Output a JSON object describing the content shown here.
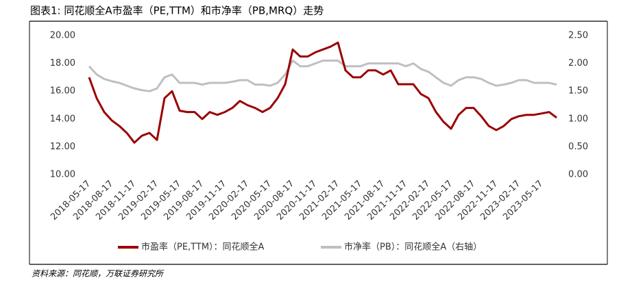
{
  "chart_data": {
    "type": "line",
    "title": "图表1: 同花顺全A市盈率（PE,TTM）和市净率（PB,MRQ）走势",
    "source": "资料来源：同花顺，万联证券研究所",
    "categories": [
      "2018-05-17",
      null,
      null,
      "2018-08-17",
      null,
      null,
      "2018-11-17",
      null,
      null,
      "2019-02-17",
      null,
      null,
      "2019-05-17",
      null,
      null,
      "2019-08-17",
      null,
      null,
      "2019-11-17",
      null,
      null,
      "2020-02-17",
      null,
      null,
      "2020-05-17",
      null,
      null,
      "2020-08-17",
      null,
      null,
      "2020-11-17",
      null,
      null,
      "2021-02-17",
      null,
      null,
      "2021-05-17",
      null,
      null,
      "2021-08-17",
      null,
      null,
      "2021-11-17",
      null,
      null,
      "2022-02-17",
      null,
      null,
      "2022-05-17",
      null,
      null,
      "2022-08-17",
      null,
      null,
      "2022-11-17",
      null,
      null,
      "2023-02-17",
      null,
      null,
      "2023-05-17",
      null,
      null
    ],
    "series": [
      {
        "name": "市盈率（PE,TTM）：同花顺全A",
        "color": "#9b0000",
        "values": [
          17.0,
          15.5,
          14.5,
          13.9,
          13.5,
          13.0,
          12.3,
          12.8,
          13.0,
          12.5,
          15.5,
          16.0,
          14.6,
          14.5,
          14.5,
          14.0,
          14.5,
          14.3,
          14.5,
          14.8,
          15.3,
          15.0,
          14.8,
          14.5,
          14.8,
          15.5,
          16.5,
          19.0,
          18.5,
          18.5,
          18.8,
          19.0,
          19.2,
          19.5,
          17.5,
          17.0,
          17.0,
          17.5,
          17.5,
          17.2,
          17.5,
          16.5,
          16.5,
          16.5,
          15.8,
          15.5,
          14.5,
          13.8,
          13.3,
          14.3,
          14.8,
          14.8,
          14.2,
          13.5,
          13.2,
          13.5,
          14.0,
          14.2,
          14.3,
          14.3,
          14.4,
          14.5,
          14.1
        ]
      },
      {
        "name": "市净率（PB）：同花顺全A（右轴）",
        "color": "#bfbfbf",
        "axis": "y2",
        "values": [
          1.95,
          1.8,
          1.72,
          1.68,
          1.65,
          1.6,
          1.55,
          1.52,
          1.5,
          1.55,
          1.75,
          1.8,
          1.65,
          1.65,
          1.65,
          1.62,
          1.65,
          1.65,
          1.65,
          1.67,
          1.7,
          1.7,
          1.62,
          1.62,
          1.6,
          1.65,
          1.8,
          2.05,
          1.95,
          1.95,
          2.0,
          2.05,
          2.05,
          2.05,
          1.95,
          1.95,
          1.95,
          2.0,
          2.0,
          2.0,
          2.0,
          2.0,
          1.95,
          2.0,
          1.9,
          1.85,
          1.75,
          1.65,
          1.6,
          1.7,
          1.75,
          1.75,
          1.72,
          1.65,
          1.6,
          1.62,
          1.65,
          1.7,
          1.7,
          1.65,
          1.65,
          1.65,
          1.62
        ]
      }
    ],
    "ylim": [
      10,
      20
    ],
    "yticks": [
      {
        "value": 10,
        "label": "10.00"
      },
      {
        "value": 12,
        "label": "12.00"
      },
      {
        "value": 14,
        "label": "14.00"
      },
      {
        "value": 16,
        "label": "16.00"
      },
      {
        "value": 18,
        "label": "18.00"
      },
      {
        "value": 20,
        "label": "20.00"
      }
    ],
    "y2lim": [
      0,
      2.5
    ],
    "y2ticks": [
      {
        "value": 0,
        "label": "0.00"
      },
      {
        "value": 0.5,
        "label": "0.50"
      },
      {
        "value": 1,
        "label": "1.00"
      },
      {
        "value": 1.5,
        "label": "1.50"
      },
      {
        "value": 2,
        "label": "2.00"
      },
      {
        "value": 2.5,
        "label": "2.50"
      }
    ]
  }
}
